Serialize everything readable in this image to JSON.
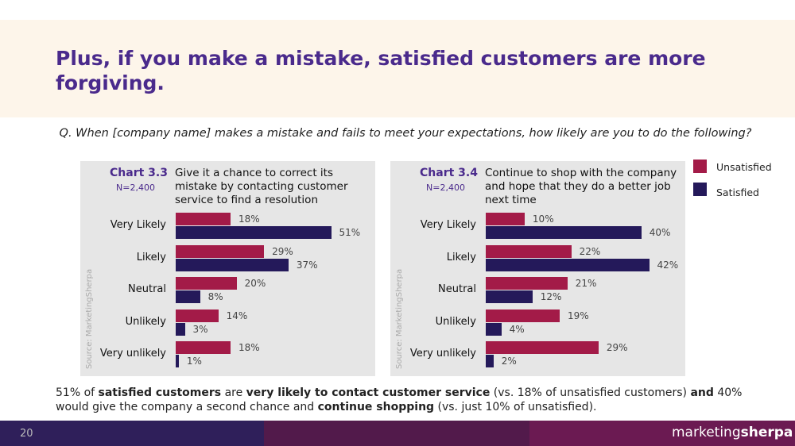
{
  "title": "Plus, if you make a mistake, satisfied customers are more forgiving.",
  "question": "Q. When [company name] makes a mistake and fails to meet your expectations, how likely are you to do the following?",
  "chart_data": [
    {
      "type": "bar",
      "orientation": "horizontal",
      "label": "Chart 3.3",
      "sample": "N=2,400",
      "title": "Give it a chance to correct its mistake by contacting customer service to find a resolution",
      "source": "Source: MarketingSherpa",
      "categories": [
        "Very Likely",
        "Likely",
        "Neutral",
        "Unlikely",
        "Very unlikely"
      ],
      "series": [
        {
          "name": "Unsatisfied",
          "color": "#a31b48",
          "values": [
            18,
            29,
            20,
            14,
            18
          ],
          "value_labels": [
            "18%",
            "29%",
            "20%",
            "14%",
            "18%"
          ]
        },
        {
          "name": "Satisfied",
          "color": "#24195a",
          "values": [
            51,
            37,
            8,
            3,
            1
          ],
          "value_labels": [
            "51%",
            "37%",
            "8%",
            "3%",
            "1%"
          ]
        }
      ],
      "xlim": [
        0,
        60
      ]
    },
    {
      "type": "bar",
      "orientation": "horizontal",
      "label": "Chart 3.4",
      "sample": "N=2,400",
      "title": "Continue to shop with the company and hope that they do a better job next time",
      "source": "Source: MarketingSherpa",
      "categories": [
        "Very Likely",
        "Likely",
        "Neutral",
        "Unlikely",
        "Very unlikely"
      ],
      "series": [
        {
          "name": "Unsatisfied",
          "color": "#a31b48",
          "values": [
            10,
            22,
            21,
            19,
            29
          ],
          "value_labels": [
            "10%",
            "22%",
            "21%",
            "19%",
            "29%"
          ]
        },
        {
          "name": "Satisfied",
          "color": "#24195a",
          "values": [
            40,
            42,
            12,
            4,
            2
          ],
          "value_labels": [
            "40%",
            "42%",
            "12%",
            "4%",
            "2%"
          ]
        }
      ],
      "xlim": [
        0,
        47
      ]
    }
  ],
  "summary": [
    {
      "text": "51% of "
    },
    {
      "text": "satisfied customers",
      "bold": true
    },
    {
      "text": " are "
    },
    {
      "text": "very likely to contact customer service",
      "bold": true
    },
    {
      "text": " (vs. 18% of unsatisfied customers) "
    },
    {
      "text": "and",
      "bold": true
    },
    {
      "text": " 40% would give the company a second chance and "
    },
    {
      "text": "continue shopping",
      "bold": true
    },
    {
      "text": " (vs. just 10% of unsatisfied)."
    }
  ],
  "page_number": "20",
  "brand": {
    "light": "marketing",
    "bold": "sherpa"
  }
}
